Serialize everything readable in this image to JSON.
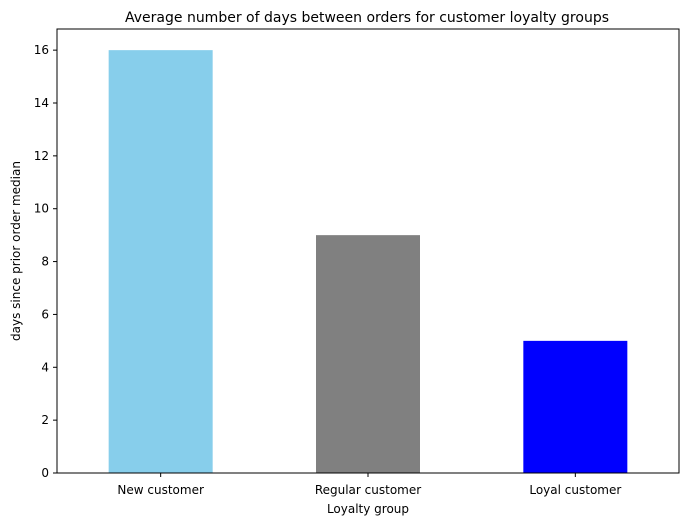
{
  "chart_data": {
    "type": "bar",
    "title": "Average number of days between orders for customer loyalty groups",
    "xlabel": "Loyalty group",
    "ylabel": "days since prior order median",
    "categories": [
      "New customer",
      "Regular customer",
      "Loyal customer"
    ],
    "values": [
      16,
      9,
      5
    ],
    "bar_colors": [
      "#87ceeb",
      "#808080",
      "#0000ff"
    ],
    "ylim": [
      0,
      16.8
    ],
    "yticks": [
      0,
      2,
      4,
      6,
      8,
      10,
      12,
      14,
      16
    ],
    "ytick_labels": [
      "0",
      "2",
      "4",
      "6",
      "8",
      "10",
      "12",
      "14",
      "16"
    ],
    "grid": false,
    "legend": "none"
  }
}
